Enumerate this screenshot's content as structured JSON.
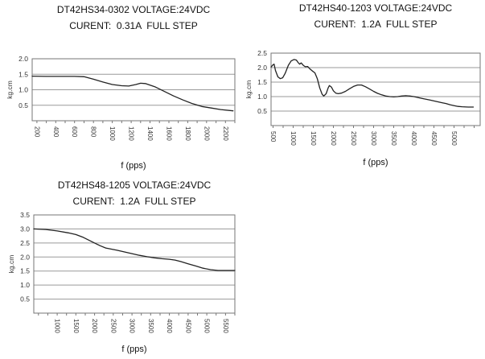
{
  "colors": {
    "background": "#ffffff",
    "curve": "#222222",
    "grid": "#9a9a9a",
    "border": "#767676",
    "title_text": "#111111",
    "tick_text": "#333333"
  },
  "chart_data": [
    {
      "id": "chart1",
      "type": "line",
      "title": "DT42HS34-0302 VOLTAGE:24VDC",
      "subtitle": "CURENT:  0.31A  FULL STEP",
      "ylabel": "kg.cm",
      "xlabel": "f (pps)",
      "ylim": [
        0,
        2.0
      ],
      "xlim": [
        150,
        2300
      ],
      "y_tick_labels": [
        "2.0",
        "1.5",
        "1.0",
        "0.5"
      ],
      "y_gridlines": [
        1.5,
        1.0,
        0.5
      ],
      "x_tick_labels": [
        "200",
        "400",
        "600",
        "800",
        "1000",
        "1200",
        "1400",
        "1600",
        "1800",
        "2000",
        "2200"
      ],
      "x_minor_step": 100,
      "grid": "horizontal-only",
      "legend": "none",
      "points": [
        [
          150,
          1.44
        ],
        [
          300,
          1.43
        ],
        [
          450,
          1.43
        ],
        [
          600,
          1.43
        ],
        [
          700,
          1.42
        ],
        [
          800,
          1.34
        ],
        [
          900,
          1.25
        ],
        [
          1000,
          1.17
        ],
        [
          1100,
          1.13
        ],
        [
          1175,
          1.12
        ],
        [
          1250,
          1.17
        ],
        [
          1300,
          1.21
        ],
        [
          1350,
          1.2
        ],
        [
          1450,
          1.1
        ],
        [
          1550,
          0.95
        ],
        [
          1650,
          0.8
        ],
        [
          1750,
          0.67
        ],
        [
          1850,
          0.55
        ],
        [
          1950,
          0.46
        ],
        [
          2050,
          0.41
        ],
        [
          2150,
          0.36
        ],
        [
          2280,
          0.32
        ]
      ]
    },
    {
      "id": "chart2",
      "type": "line",
      "title": "DT42HS40-1203 VOLTAGE:24VDC",
      "subtitle": "CURENT:  1.2A  FULL STEP",
      "ylabel": "kg.cm",
      "xlabel": "f (pps)",
      "ylim": [
        0,
        2.5
      ],
      "xlim": [
        450,
        5650
      ],
      "y_tick_labels": [
        "2.5",
        "2.0",
        "1.5",
        "1.0",
        "0.5"
      ],
      "y_gridlines": [
        2.0,
        1.5,
        1.0,
        0.5
      ],
      "x_tick_labels": [
        "500",
        "1000",
        "1500",
        "2000",
        "2500",
        "3000",
        "3500",
        "4000",
        "4500",
        "5000"
      ],
      "x_minor_step": 250,
      "grid": "horizontal-only",
      "legend": "none",
      "points": [
        [
          450,
          2.02
        ],
        [
          500,
          2.1
        ],
        [
          525,
          2.12
        ],
        [
          560,
          1.9
        ],
        [
          620,
          1.68
        ],
        [
          680,
          1.62
        ],
        [
          740,
          1.65
        ],
        [
          800,
          1.8
        ],
        [
          880,
          2.08
        ],
        [
          950,
          2.23
        ],
        [
          1020,
          2.28
        ],
        [
          1080,
          2.26
        ],
        [
          1120,
          2.18
        ],
        [
          1160,
          2.12
        ],
        [
          1200,
          2.16
        ],
        [
          1250,
          2.08
        ],
        [
          1300,
          2.03
        ],
        [
          1360,
          2.04
        ],
        [
          1420,
          1.95
        ],
        [
          1480,
          1.88
        ],
        [
          1540,
          1.82
        ],
        [
          1600,
          1.62
        ],
        [
          1660,
          1.3
        ],
        [
          1720,
          1.08
        ],
        [
          1760,
          1.02
        ],
        [
          1820,
          1.1
        ],
        [
          1870,
          1.3
        ],
        [
          1900,
          1.38
        ],
        [
          1950,
          1.33
        ],
        [
          2000,
          1.2
        ],
        [
          2060,
          1.12
        ],
        [
          2120,
          1.1
        ],
        [
          2200,
          1.12
        ],
        [
          2300,
          1.18
        ],
        [
          2400,
          1.27
        ],
        [
          2500,
          1.35
        ],
        [
          2600,
          1.4
        ],
        [
          2700,
          1.4
        ],
        [
          2800,
          1.34
        ],
        [
          2900,
          1.26
        ],
        [
          3000,
          1.18
        ],
        [
          3100,
          1.11
        ],
        [
          3200,
          1.06
        ],
        [
          3300,
          1.02
        ],
        [
          3400,
          1.0
        ],
        [
          3500,
          0.99
        ],
        [
          3600,
          1.0
        ],
        [
          3700,
          1.02
        ],
        [
          3800,
          1.03
        ],
        [
          3900,
          1.02
        ],
        [
          4000,
          1.0
        ],
        [
          4100,
          0.97
        ],
        [
          4200,
          0.94
        ],
        [
          4300,
          0.91
        ],
        [
          4400,
          0.88
        ],
        [
          4500,
          0.85
        ],
        [
          4600,
          0.82
        ],
        [
          4700,
          0.79
        ],
        [
          4800,
          0.76
        ],
        [
          4900,
          0.72
        ],
        [
          5000,
          0.69
        ],
        [
          5100,
          0.66
        ],
        [
          5200,
          0.65
        ],
        [
          5350,
          0.64
        ],
        [
          5480,
          0.64
        ]
      ]
    },
    {
      "id": "chart3",
      "type": "line",
      "title": "DT42HS48-1205 VOLTAGE:24VDC",
      "subtitle": "CURENT:  1.2A  FULL STEP",
      "ylabel": "kg.cm",
      "xlabel": "f (pps)",
      "ylim": [
        0,
        3.5
      ],
      "xlim": [
        375,
        5750
      ],
      "y_tick_labels": [
        "3.5",
        "3.0",
        "2.5",
        "2.0",
        "1.5",
        "1.0",
        "0.5"
      ],
      "y_gridlines": [
        3.0,
        2.5,
        2.0,
        1.5,
        1.0,
        0.5
      ],
      "x_tick_labels": [
        "1000",
        "1500",
        "2000",
        "2500",
        "3000",
        "3500",
        "4000",
        "4500",
        "5000",
        "5500"
      ],
      "x_minor_step": 250,
      "grid": "horizontal-only",
      "legend": "none",
      "points": [
        [
          375,
          3.0
        ],
        [
          700,
          2.98
        ],
        [
          1000,
          2.93
        ],
        [
          1300,
          2.86
        ],
        [
          1500,
          2.8
        ],
        [
          1700,
          2.7
        ],
        [
          1850,
          2.6
        ],
        [
          2000,
          2.5
        ],
        [
          2150,
          2.4
        ],
        [
          2300,
          2.32
        ],
        [
          2450,
          2.28
        ],
        [
          2600,
          2.24
        ],
        [
          2800,
          2.18
        ],
        [
          3000,
          2.12
        ],
        [
          3200,
          2.06
        ],
        [
          3400,
          2.01
        ],
        [
          3600,
          1.97
        ],
        [
          3800,
          1.94
        ],
        [
          4000,
          1.92
        ],
        [
          4150,
          1.89
        ],
        [
          4300,
          1.84
        ],
        [
          4500,
          1.76
        ],
        [
          4700,
          1.68
        ],
        [
          4900,
          1.6
        ],
        [
          5100,
          1.55
        ],
        [
          5300,
          1.52
        ],
        [
          5500,
          1.52
        ],
        [
          5750,
          1.52
        ]
      ]
    }
  ]
}
